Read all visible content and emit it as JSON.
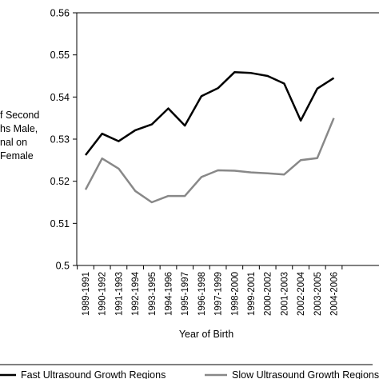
{
  "chart_data": {
    "type": "line",
    "title": "",
    "xlabel": "Year of Birth",
    "ylabel_lines": [
      "f Second",
      "hs Male,",
      "nal on",
      "Female"
    ],
    "ylim": [
      0.5,
      0.56
    ],
    "yticks": [
      "0.5",
      "0.51",
      "0.52",
      "0.53",
      "0.54",
      "0.55",
      "0.56"
    ],
    "grid": false,
    "legend_position": "bottom",
    "categories": [
      "1989-1991",
      "1990-1992",
      "1991-1993",
      "1992-1994",
      "1993-1995",
      "1994-1996",
      "1995-1997",
      "1996-1998",
      "1997-1999",
      "1998-2000",
      "1999-2001",
      "2000-2002",
      "2001-2003",
      "2002-2004",
      "2003-2005",
      "2004-2006"
    ],
    "series": [
      {
        "name": "Fast Ultrasound Growth Regions",
        "color": "#000000",
        "values": [
          0.5262,
          0.5313,
          0.5295,
          0.5321,
          0.5335,
          0.5373,
          0.5332,
          0.5402,
          0.5421,
          0.5459,
          0.5457,
          0.545,
          0.5432,
          0.5344,
          0.542,
          0.5445
        ]
      },
      {
        "name": "Slow Ultrasound Growth Regions",
        "color": "#888888",
        "values": [
          0.518,
          0.5254,
          0.523,
          0.5177,
          0.515,
          0.5165,
          0.5165,
          0.521,
          0.5226,
          0.5225,
          0.5221,
          0.5219,
          0.5216,
          0.525,
          0.5255,
          0.535
        ]
      }
    ]
  }
}
